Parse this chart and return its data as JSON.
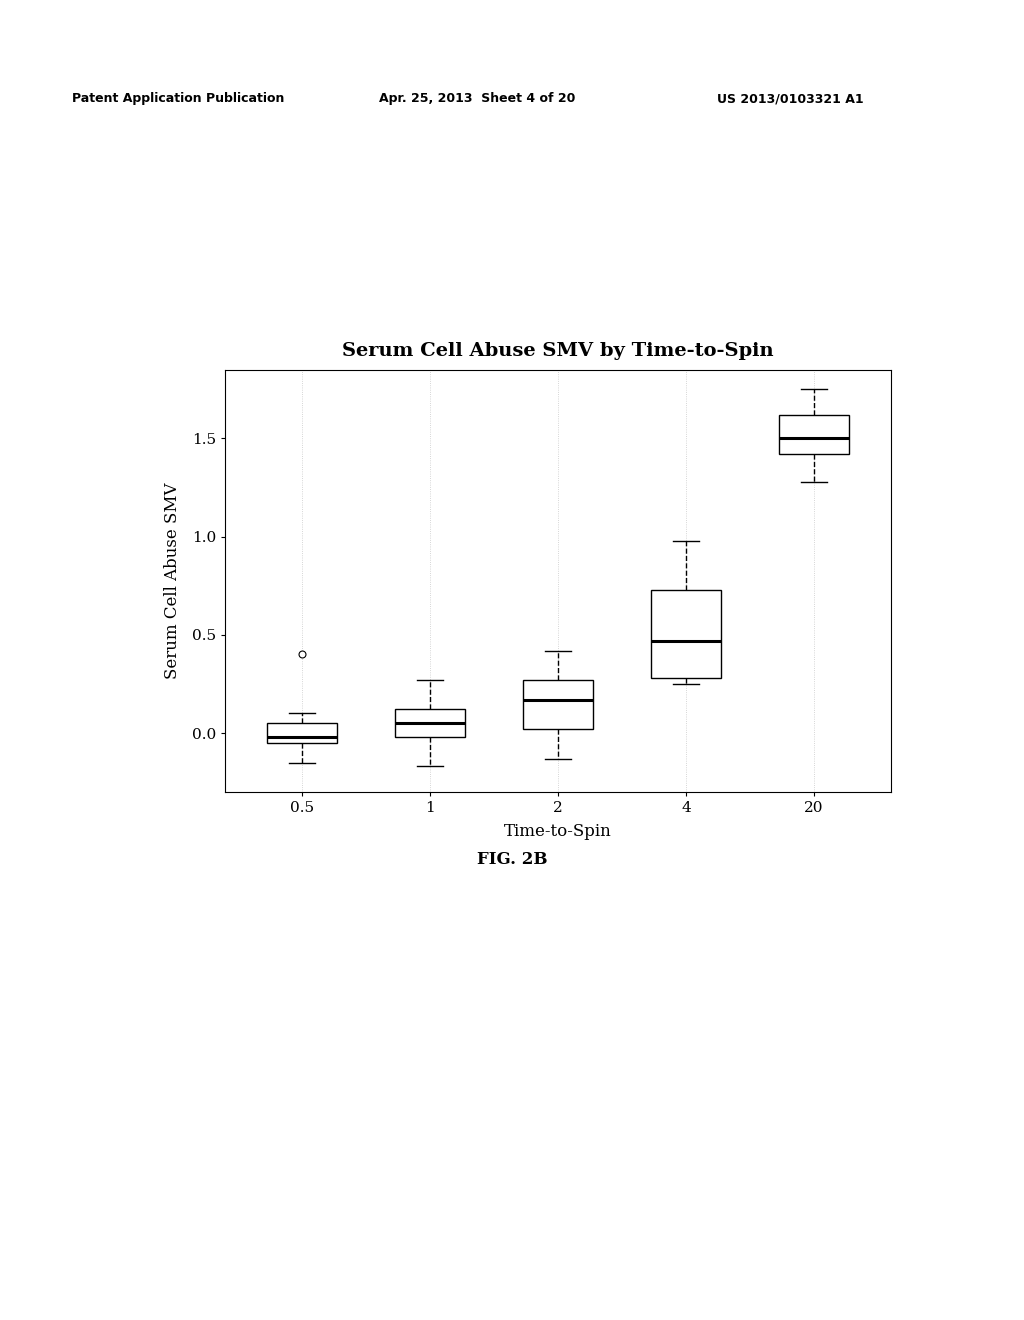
{
  "title": "Serum Cell Abuse SMV by Time-to-Spin",
  "xlabel": "Time-to-Spin",
  "ylabel": "Serum Cell Abuse SMV",
  "categories": [
    "0.5",
    "1",
    "2",
    "4",
    "20"
  ],
  "x_positions": [
    1,
    2,
    3,
    4,
    5
  ],
  "ylim": [
    -0.3,
    1.85
  ],
  "yticks": [
    0.0,
    0.5,
    1.0,
    1.5
  ],
  "ytick_labels": [
    "0.0",
    "0.5",
    "1.0",
    "1.5"
  ],
  "patent_header": "Patent Application Publication",
  "patent_date": "Apr. 25, 2013  Sheet 4 of 20",
  "patent_number": "US 2013/0103321 A1",
  "fig_label": "FIG. 2B",
  "boxes": [
    {
      "label": "0.5",
      "q1": -0.05,
      "median": -0.02,
      "q3": 0.05,
      "whisker_low": -0.15,
      "whisker_high": 0.1,
      "outliers": [
        0.4
      ]
    },
    {
      "label": "1",
      "q1": -0.02,
      "median": 0.05,
      "q3": 0.12,
      "whisker_low": -0.17,
      "whisker_high": 0.27,
      "outliers": []
    },
    {
      "label": "2",
      "q1": 0.02,
      "median": 0.17,
      "q3": 0.27,
      "whisker_low": -0.13,
      "whisker_high": 0.42,
      "outliers": []
    },
    {
      "label": "4",
      "q1": 0.28,
      "median": 0.47,
      "q3": 0.73,
      "whisker_low": 0.25,
      "whisker_high": 0.98,
      "outliers": []
    },
    {
      "label": "20",
      "q1": 1.42,
      "median": 1.5,
      "q3": 1.62,
      "whisker_low": 1.28,
      "whisker_high": 1.75,
      "outliers": []
    }
  ],
  "box_width": 0.55,
  "background_color": "#ffffff",
  "box_facecolor": "white",
  "box_edgecolor": "black",
  "median_color": "black",
  "whisker_color": "black",
  "outlier_color": "white",
  "outlier_edgecolor": "black",
  "grid_color": "#c8c8c8",
  "title_fontsize": 14,
  "axis_label_fontsize": 12,
  "tick_fontsize": 11,
  "patent_fontsize": 9,
  "fig_label_fontsize": 12
}
